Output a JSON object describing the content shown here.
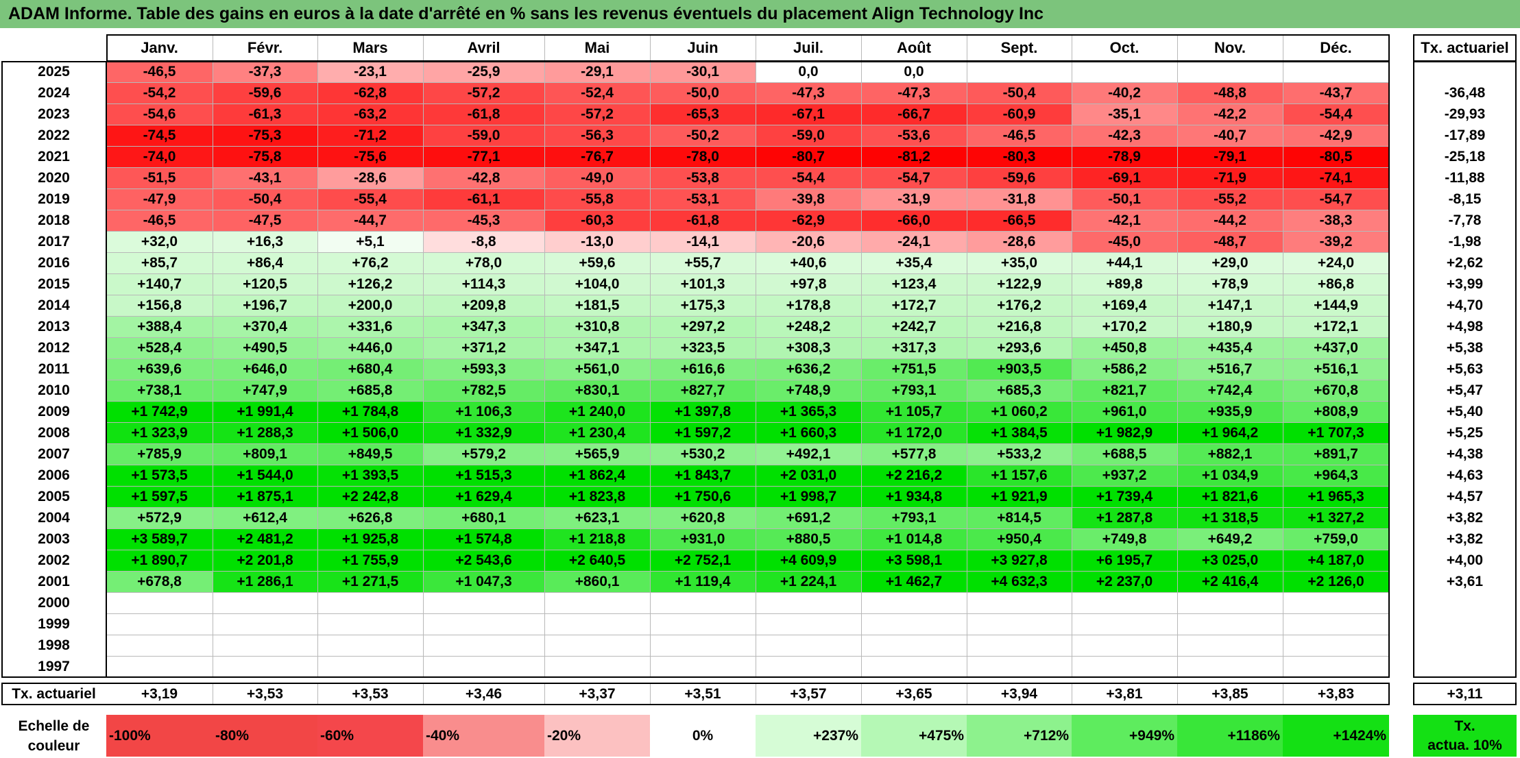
{
  "title": "ADAM Informe. Table des gains en euros à la date d'arrêté en % sans les revenus éventuels du placement Align Technology Inc",
  "chart_data": {
    "type": "table",
    "title": "ADAM Informe. Table des gains en euros à la date d'arrêté en % sans les revenus éventuels du placement Align Technology Inc",
    "columns": [
      "Janv.",
      "Févr.",
      "Mars",
      "Avril",
      "Mai",
      "Juin",
      "Juil.",
      "Août",
      "Sept.",
      "Oct.",
      "Nov.",
      "Déc."
    ],
    "actuarial_header": "Tx. actuariel",
    "rows": [
      {
        "year": "2025",
        "values": [
          "-46,5",
          "-37,3",
          "-23,1",
          "-25,9",
          "-29,1",
          "-30,1",
          "0,0",
          "0,0",
          "",
          "",
          "",
          ""
        ],
        "rate": ""
      },
      {
        "year": "2024",
        "values": [
          "-54,2",
          "-59,6",
          "-62,8",
          "-57,2",
          "-52,4",
          "-50,0",
          "-47,3",
          "-47,3",
          "-50,4",
          "-40,2",
          "-48,8",
          "-43,7"
        ],
        "rate": "-36,48"
      },
      {
        "year": "2023",
        "values": [
          "-54,6",
          "-61,3",
          "-63,2",
          "-61,8",
          "-57,2",
          "-65,3",
          "-67,1",
          "-66,7",
          "-60,9",
          "-35,1",
          "-42,2",
          "-54,4"
        ],
        "rate": "-29,93"
      },
      {
        "year": "2022",
        "values": [
          "-74,5",
          "-75,3",
          "-71,2",
          "-59,0",
          "-56,3",
          "-50,2",
          "-59,0",
          "-53,6",
          "-46,5",
          "-42,3",
          "-40,7",
          "-42,9"
        ],
        "rate": "-17,89"
      },
      {
        "year": "2021",
        "values": [
          "-74,0",
          "-75,8",
          "-75,6",
          "-77,1",
          "-76,7",
          "-78,0",
          "-80,7",
          "-81,2",
          "-80,3",
          "-78,9",
          "-79,1",
          "-80,5"
        ],
        "rate": "-25,18"
      },
      {
        "year": "2020",
        "values": [
          "-51,5",
          "-43,1",
          "-28,6",
          "-42,8",
          "-49,0",
          "-53,8",
          "-54,4",
          "-54,7",
          "-59,6",
          "-69,1",
          "-71,9",
          "-74,1"
        ],
        "rate": "-11,88"
      },
      {
        "year": "2019",
        "values": [
          "-47,9",
          "-50,4",
          "-55,4",
          "-61,1",
          "-55,8",
          "-53,1",
          "-39,8",
          "-31,9",
          "-31,8",
          "-50,1",
          "-55,2",
          "-54,7"
        ],
        "rate": "-8,15"
      },
      {
        "year": "2018",
        "values": [
          "-46,5",
          "-47,5",
          "-44,7",
          "-45,3",
          "-60,3",
          "-61,8",
          "-62,9",
          "-66,0",
          "-66,5",
          "-42,1",
          "-44,2",
          "-38,3"
        ],
        "rate": "-7,78"
      },
      {
        "year": "2017",
        "values": [
          "+32,0",
          "+16,3",
          "+5,1",
          "-8,8",
          "-13,0",
          "-14,1",
          "-20,6",
          "-24,1",
          "-28,6",
          "-45,0",
          "-48,7",
          "-39,2"
        ],
        "rate": "-1,98"
      },
      {
        "year": "2016",
        "values": [
          "+85,7",
          "+86,4",
          "+76,2",
          "+78,0",
          "+59,6",
          "+55,7",
          "+40,6",
          "+35,4",
          "+35,0",
          "+44,1",
          "+29,0",
          "+24,0"
        ],
        "rate": "+2,62"
      },
      {
        "year": "2015",
        "values": [
          "+140,7",
          "+120,5",
          "+126,2",
          "+114,3",
          "+104,0",
          "+101,3",
          "+97,8",
          "+123,4",
          "+122,9",
          "+89,8",
          "+78,9",
          "+86,8"
        ],
        "rate": "+3,99"
      },
      {
        "year": "2014",
        "values": [
          "+156,8",
          "+196,7",
          "+200,0",
          "+209,8",
          "+181,5",
          "+175,3",
          "+178,8",
          "+172,7",
          "+176,2",
          "+169,4",
          "+147,1",
          "+144,9"
        ],
        "rate": "+4,70"
      },
      {
        "year": "2013",
        "values": [
          "+388,4",
          "+370,4",
          "+331,6",
          "+347,3",
          "+310,8",
          "+297,2",
          "+248,2",
          "+242,7",
          "+216,8",
          "+170,2",
          "+180,9",
          "+172,1"
        ],
        "rate": "+4,98"
      },
      {
        "year": "2012",
        "values": [
          "+528,4",
          "+490,5",
          "+446,0",
          "+371,2",
          "+347,1",
          "+323,5",
          "+308,3",
          "+317,3",
          "+293,6",
          "+450,8",
          "+435,4",
          "+437,0"
        ],
        "rate": "+5,38"
      },
      {
        "year": "2011",
        "values": [
          "+639,6",
          "+646,0",
          "+680,4",
          "+593,3",
          "+561,0",
          "+616,6",
          "+636,2",
          "+751,5",
          "+903,5",
          "+586,2",
          "+516,7",
          "+516,1"
        ],
        "rate": "+5,63"
      },
      {
        "year": "2010",
        "values": [
          "+738,1",
          "+747,9",
          "+685,8",
          "+782,5",
          "+830,1",
          "+827,7",
          "+748,9",
          "+793,1",
          "+685,3",
          "+821,7",
          "+742,4",
          "+670,8"
        ],
        "rate": "+5,47"
      },
      {
        "year": "2009",
        "values": [
          "+1 742,9",
          "+1 991,4",
          "+1 784,8",
          "+1 106,3",
          "+1 240,0",
          "+1 397,8",
          "+1 365,3",
          "+1 105,7",
          "+1 060,2",
          "+961,0",
          "+935,9",
          "+808,9"
        ],
        "rate": "+5,40"
      },
      {
        "year": "2008",
        "values": [
          "+1 323,9",
          "+1 288,3",
          "+1 506,0",
          "+1 332,9",
          "+1 230,4",
          "+1 597,2",
          "+1 660,3",
          "+1 172,0",
          "+1 384,5",
          "+1 982,9",
          "+1 964,2",
          "+1 707,3"
        ],
        "rate": "+5,25"
      },
      {
        "year": "2007",
        "values": [
          "+785,9",
          "+809,1",
          "+849,5",
          "+579,2",
          "+565,9",
          "+530,2",
          "+492,1",
          "+577,8",
          "+533,2",
          "+688,5",
          "+882,1",
          "+891,7"
        ],
        "rate": "+4,38"
      },
      {
        "year": "2006",
        "values": [
          "+1 573,5",
          "+1 544,0",
          "+1 393,5",
          "+1 515,3",
          "+1 862,4",
          "+1 843,7",
          "+2 031,0",
          "+2 216,2",
          "+1 157,6",
          "+937,2",
          "+1 034,9",
          "+964,3"
        ],
        "rate": "+4,63"
      },
      {
        "year": "2005",
        "values": [
          "+1 597,5",
          "+1 875,1",
          "+2 242,8",
          "+1 629,4",
          "+1 823,8",
          "+1 750,6",
          "+1 998,7",
          "+1 934,8",
          "+1 921,9",
          "+1 739,4",
          "+1 821,6",
          "+1 965,3"
        ],
        "rate": "+4,57"
      },
      {
        "year": "2004",
        "values": [
          "+572,9",
          "+612,4",
          "+626,8",
          "+680,1",
          "+623,1",
          "+620,8",
          "+691,2",
          "+793,1",
          "+814,5",
          "+1 287,8",
          "+1 318,5",
          "+1 327,2"
        ],
        "rate": "+3,82"
      },
      {
        "year": "2003",
        "values": [
          "+3 589,7",
          "+2 481,2",
          "+1 925,8",
          "+1 574,8",
          "+1 218,8",
          "+931,0",
          "+880,5",
          "+1 014,8",
          "+950,4",
          "+749,8",
          "+649,2",
          "+759,0"
        ],
        "rate": "+3,82"
      },
      {
        "year": "2002",
        "values": [
          "+1 890,7",
          "+2 201,8",
          "+1 755,9",
          "+2 543,6",
          "+2 640,5",
          "+2 752,1",
          "+4 609,9",
          "+3 598,1",
          "+3 927,8",
          "+6 195,7",
          "+3 025,0",
          "+4 187,0"
        ],
        "rate": "+4,00"
      },
      {
        "year": "2001",
        "values": [
          "+678,8",
          "+1 286,1",
          "+1 271,5",
          "+1 047,3",
          "+860,1",
          "+1 119,4",
          "+1 224,1",
          "+1 462,7",
          "+4 632,3",
          "+2 237,0",
          "+2 416,4",
          "+2 126,0"
        ],
        "rate": "+3,61"
      },
      {
        "year": "2000",
        "values": [
          "",
          "",
          "",
          "",
          "",
          "",
          "",
          "",
          "",
          "",
          "",
          ""
        ],
        "rate": ""
      },
      {
        "year": "1999",
        "values": [
          "",
          "",
          "",
          "",
          "",
          "",
          "",
          "",
          "",
          "",
          "",
          ""
        ],
        "rate": ""
      },
      {
        "year": "1998",
        "values": [
          "",
          "",
          "",
          "",
          "",
          "",
          "",
          "",
          "",
          "",
          "",
          ""
        ],
        "rate": ""
      },
      {
        "year": "1997",
        "values": [
          "",
          "",
          "",
          "",
          "",
          "",
          "",
          "",
          "",
          "",
          "",
          ""
        ],
        "rate": ""
      }
    ],
    "footer": {
      "label": "Tx. actuariel",
      "values": [
        "+3,19",
        "+3,53",
        "+3,53",
        "+3,46",
        "+3,37",
        "+3,51",
        "+3,57",
        "+3,65",
        "+3,94",
        "+3,81",
        "+3,85",
        "+3,83"
      ],
      "rate": "+3,11"
    },
    "legend": {
      "label_line1": "Echelle de",
      "label_line2": "couleur",
      "items": [
        {
          "text": "-100%",
          "color": "#f24646",
          "align": "left"
        },
        {
          "text": "-80%",
          "color": "#f24646",
          "align": "left"
        },
        {
          "text": "-60%",
          "color": "#f4474b",
          "align": "left"
        },
        {
          "text": "-40%",
          "color": "#f98d8d",
          "align": "left"
        },
        {
          "text": "-20%",
          "color": "#fcc1c1",
          "align": "left"
        },
        {
          "text": "0%",
          "color": "#ffffff",
          "align": "center"
        },
        {
          "text": "+237%",
          "color": "#d6fcd6",
          "align": "right"
        },
        {
          "text": "+475%",
          "color": "#b5f8b5",
          "align": "right"
        },
        {
          "text": "+712%",
          "color": "#8df28d",
          "align": "right"
        },
        {
          "text": "+949%",
          "color": "#5eec5e",
          "align": "right"
        },
        {
          "text": "+1186%",
          "color": "#39e639",
          "align": "right"
        },
        {
          "text": "+1424%",
          "color": "#14e014",
          "align": "right"
        }
      ],
      "rate_line1": "Tx.",
      "rate_line2": "actua. 10%",
      "rate_color": "#14e014"
    },
    "colors": {
      "title_bar": "#7cc47c",
      "red_max": "#fe0000",
      "green_max": "#00e000"
    }
  }
}
